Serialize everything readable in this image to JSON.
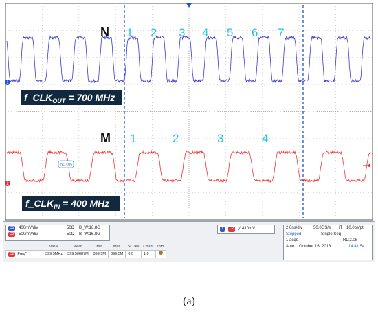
{
  "chart_data": {
    "type": "line",
    "title": "",
    "xlabel": "",
    "ylabel": "",
    "grid": true,
    "x_divisions": 10,
    "y_divisions": 8,
    "series": [
      {
        "channel": "1",
        "color": "#3a3ad0",
        "frequency_mhz": 700,
        "periods_shown": 7
      },
      {
        "channel": "2",
        "color": "#ee3333",
        "frequency_mhz": 400,
        "periods_shown": 4
      }
    ],
    "annotations": {
      "top_letter": "N",
      "top_counts": [
        "1",
        "2",
        "3",
        "4",
        "5",
        "6",
        "7"
      ],
      "bottom_letter": "M",
      "bottom_counts": [
        "1",
        "2",
        "3",
        "4"
      ],
      "top_label_prefix": "f_CLK",
      "top_label_sub": "OUT",
      "top_label_suffix": " = 700 MHz",
      "bottom_label_prefix": "f_CLK",
      "bottom_label_sub": "IN",
      "bottom_label_suffix": " = 400 MHz",
      "duty_tag": "50.0%"
    },
    "marker_colors": {
      "annotation": "#22c5d9",
      "cursor": "#1f55c8",
      "label_bg": "#12283e"
    }
  },
  "status_bar": {
    "channels": [
      {
        "badge": "C1",
        "color": "#3a56c5",
        "scale": "400mV/div",
        "imp": "50Ω",
        "bw": "B_W:16.8G"
      },
      {
        "badge": "C2",
        "color": "#e03a3a",
        "scale": "500mV/div",
        "imp": "50Ω",
        "bw": "B_W:16.8G"
      }
    ],
    "trigger": {
      "badge": "C2",
      "level": "410mV"
    },
    "acquisition": {
      "timebase": "2.0ns/div",
      "sample_rate": "50.0GS/s",
      "it": "IT",
      "resolution": "10.0ps/pt",
      "state": "Stopped",
      "mode": "Single Seq",
      "acqs": "1 acqs",
      "rl": "RL:2.0k",
      "auto": "Auto",
      "date": "October 16, 2013",
      "time": "14:41:54"
    },
    "measurements": {
      "headers": [
        "Value",
        "Mean",
        "Min",
        "Max",
        "St Dev",
        "Count",
        "Info"
      ],
      "rows": [
        {
          "badge": "C2",
          "label": "Freq*",
          "value": "399.5MHz",
          "mean": "399.50687M",
          "min": "399.5M",
          "max": "399.5M",
          "stdev": "0.0",
          "count": "1.0"
        }
      ]
    }
  },
  "caption": "(a)"
}
